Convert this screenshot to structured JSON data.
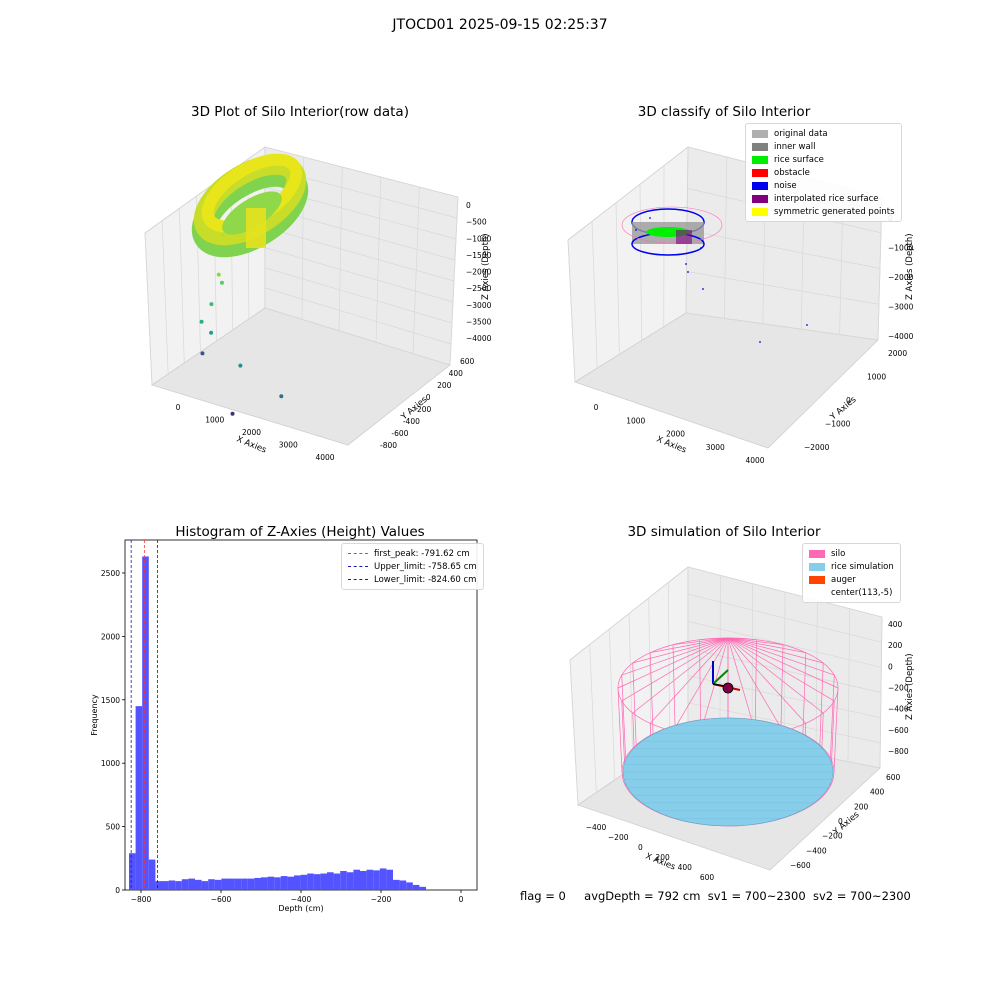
{
  "figure": {
    "title": "JTOCD01 2025-09-15 02:25:37",
    "status": {
      "flag": "flag = 0",
      "avg_depth": "avgDepth = 792 cm",
      "sv1": "sv1 = 700~2300",
      "sv2": "sv2 = 700~2300"
    }
  },
  "chart_data": [
    {
      "type": "scatter",
      "projection": "3d",
      "title": "3D Plot of Silo Interior(row data)",
      "xlabel": "X Axies",
      "ylabel": "Y Axies",
      "zlabel": "Z Axies (Depth)",
      "x_ticks": [
        "0",
        "1000",
        "2000",
        "3000",
        "4000"
      ],
      "y_ticks": [
        "-800",
        "-600",
        "-400",
        "-200",
        "0",
        "200",
        "400",
        "600"
      ],
      "z_ticks": [
        "0",
        "−500",
        "−1000",
        "−1500",
        "−2000",
        "−2500",
        "−3000",
        "−3500",
        "−4000"
      ],
      "colormap": "viridis (by depth)",
      "description_points": [
        {
          "x": 900,
          "y": 100,
          "z": -400
        },
        {
          "x": 950,
          "y": 0,
          "z": -1200
        },
        {
          "x": 1100,
          "y": -50,
          "z": -1300
        },
        {
          "x": 700,
          "y": 50,
          "z": -2000
        },
        {
          "x": 650,
          "y": -80,
          "z": -2300
        },
        {
          "x": 1200,
          "y": -300,
          "z": -2200
        },
        {
          "x": 2200,
          "y": -500,
          "z": -2500
        },
        {
          "x": 2900,
          "y": -300,
          "z": -3200
        },
        {
          "x": 700,
          "y": -100,
          "z": -3000
        },
        {
          "x": 2300,
          "y": -700,
          "z": -3400
        }
      ]
    },
    {
      "type": "scatter",
      "projection": "3d",
      "title": "3D classify of Silo Interior",
      "xlabel": "X Axies",
      "ylabel": "Y Axies",
      "zlabel": "Z Axies (Depth)",
      "x_ticks": [
        "0",
        "1000",
        "2000",
        "3000",
        "4000"
      ],
      "y_ticks": [
        "−2000",
        "−1000",
        "0",
        "1000",
        "2000"
      ],
      "z_ticks": [
        "0",
        "−1000",
        "−2000",
        "−3000",
        "−4000"
      ],
      "legend": [
        {
          "label": "original data",
          "color": "#b0b0b0"
        },
        {
          "label": "inner wall",
          "color": "#808080"
        },
        {
          "label": "rice surface",
          "color": "#00ee00"
        },
        {
          "label": "obstacle",
          "color": "#ff0000"
        },
        {
          "label": "noise",
          "color": "#0000ee"
        },
        {
          "label": "interpolated rice surface",
          "color": "#800080"
        },
        {
          "label": "symmetric generated points",
          "color": "#ffff00"
        }
      ]
    },
    {
      "type": "bar",
      "title": "Histogram of Z-Axies (Height) Values",
      "xlabel": "Depth (cm)",
      "ylabel": "Frequency",
      "xlim": [
        -840,
        40
      ],
      "ylim": [
        0,
        2760
      ],
      "x_ticks": [
        -800,
        -600,
        -400,
        -200,
        0
      ],
      "y_ticks": [
        0,
        500,
        1000,
        1500,
        2000,
        2500
      ],
      "bin_edges_start": -830,
      "bin_width": 16.5,
      "values": [
        290,
        1450,
        2630,
        240,
        70,
        70,
        75,
        70,
        85,
        90,
        80,
        70,
        85,
        80,
        90,
        90,
        90,
        90,
        90,
        95,
        100,
        105,
        100,
        110,
        105,
        115,
        120,
        130,
        125,
        130,
        140,
        130,
        150,
        140,
        160,
        150,
        160,
        155,
        170,
        160,
        80,
        75,
        60,
        40,
        25
      ],
      "color": "#4a4aff",
      "vlines": [
        {
          "label": "first_peak: -791.62 cm",
          "x": -791.62,
          "color": "#ff3333"
        },
        {
          "label": "Upper_limit: -758.65 cm",
          "x": -758.65,
          "color": "#1a1aaa"
        },
        {
          "label": "Lower_limit: -824.60 cm",
          "x": -824.6,
          "color": "#1a1aaa"
        }
      ]
    },
    {
      "type": "scatter",
      "projection": "3d",
      "title": "3D simulation of Silo Interior",
      "xlabel": "X Axies",
      "ylabel": "Y Axies",
      "zlabel": "Z Axies (Depth)",
      "x_ticks": [
        "−400",
        "−200",
        "0",
        "200",
        "400",
        "600"
      ],
      "y_ticks": [
        "−600",
        "−400",
        "−200",
        "0",
        "200",
        "400",
        "600"
      ],
      "z_ticks": [
        "400",
        "200",
        "0",
        "−200",
        "−400",
        "−600",
        "−800"
      ],
      "legend": [
        {
          "label": "silo",
          "color": "#ff69b4"
        },
        {
          "label": "rice simulation",
          "color": "#87ceeb"
        },
        {
          "label": "auger",
          "color": "#ff4500"
        },
        {
          "label": "center(113,-5)",
          "color": ""
        }
      ]
    }
  ]
}
